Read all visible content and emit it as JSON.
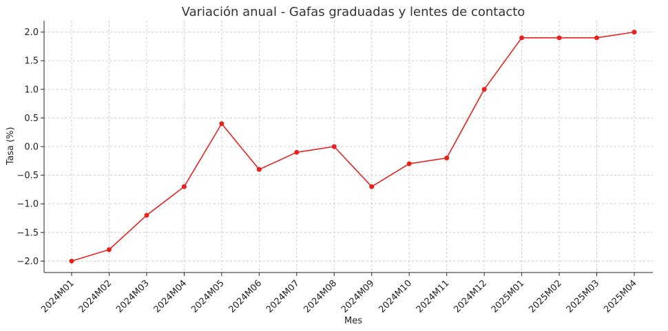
{
  "chart_data": {
    "type": "line",
    "title": "Variación anual - Gafas graduadas y lentes de contacto",
    "xlabel": "Mes",
    "ylabel": "Tasa (%)",
    "categories": [
      "2024M01",
      "2024M02",
      "2024M03",
      "2024M04",
      "2024M05",
      "2024M06",
      "2024M07",
      "2024M08",
      "2024M09",
      "2024M10",
      "2024M11",
      "2024M12",
      "2025M01",
      "2025M02",
      "2025M03",
      "2025M04"
    ],
    "series": [
      {
        "values": [
          -2.0,
          -1.8,
          -1.2,
          -0.7,
          0.4,
          -0.4,
          -0.1,
          0.0,
          -0.7,
          -0.3,
          -0.2,
          1.0,
          1.9,
          1.9,
          1.9,
          2.0
        ],
        "color": "#e8211c"
      }
    ],
    "ylim": [
      -2.2,
      2.2
    ],
    "yticks": [
      -2.0,
      -1.5,
      -1.0,
      -0.5,
      0.0,
      0.5,
      1.0,
      1.5,
      2.0
    ],
    "ytick_labels": [
      "−2.0",
      "−1.5",
      "−1.0",
      "−0.5",
      "0.0",
      "0.5",
      "1.0",
      "1.5",
      "2.0"
    ],
    "grid": true,
    "markers": "circle"
  }
}
